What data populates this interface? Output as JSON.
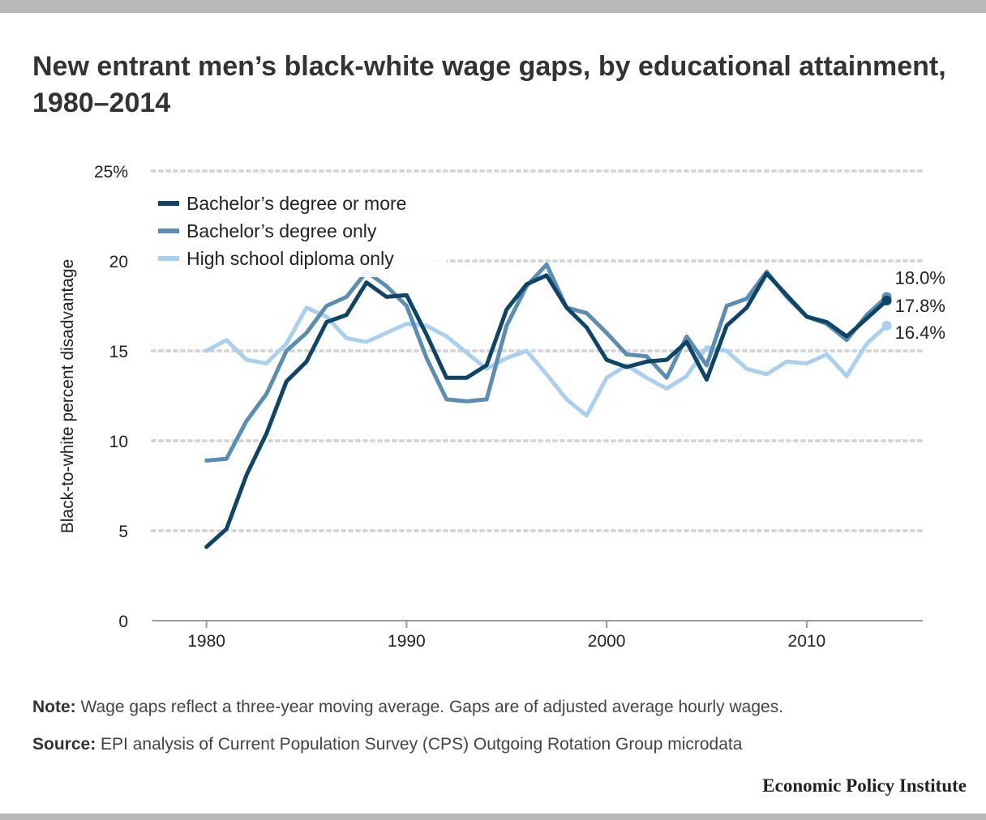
{
  "title": "New entrant men’s black-white wage gaps, by educational attainment, 1980–2014",
  "note": {
    "label": "Note:",
    "text": "Wage gaps reflect a three-year moving average. Gaps are of adjusted average hourly wages."
  },
  "source": {
    "label": "Source:",
    "text": "EPI analysis of Current Population Survey (CPS) Outgoing Rotation Group microdata"
  },
  "brand": "Economic Policy Institute",
  "chart_data": {
    "type": "line",
    "title": "New entrant men’s black-white wage gaps, by educational attainment, 1980–2014",
    "xlabel": "",
    "ylabel": "Black-to-white percent disadvantage",
    "xlim": [
      1977.3,
      2015.8
    ],
    "ylim": [
      0,
      25
    ],
    "x_ticks": [
      1980,
      1990,
      2000,
      2010
    ],
    "x_tick_labels": [
      "1980",
      "1990",
      "2000",
      "2010"
    ],
    "y_ticks": [
      0,
      5,
      10,
      15,
      20,
      25
    ],
    "y_tick_labels": [
      "0",
      "5",
      "10",
      "15",
      "20",
      "25%"
    ],
    "grid": "horizontal dotted",
    "legend_position": "top-left",
    "x": [
      1980,
      1981,
      1982,
      1983,
      1984,
      1985,
      1986,
      1987,
      1988,
      1989,
      1990,
      1991,
      1992,
      1993,
      1994,
      1995,
      1996,
      1997,
      1998,
      1999,
      2000,
      2001,
      2002,
      2003,
      2004,
      2005,
      2006,
      2007,
      2008,
      2009,
      2010,
      2011,
      2012,
      2013,
      2014
    ],
    "series": [
      {
        "name": "Bachelor’s degree or more",
        "color": "#0e4466",
        "values": [
          4.1,
          5.1,
          8.1,
          10.4,
          13.3,
          14.4,
          16.6,
          17.0,
          18.8,
          18.0,
          18.1,
          15.9,
          13.5,
          13.5,
          14.2,
          17.3,
          18.7,
          19.2,
          17.4,
          16.3,
          14.5,
          14.1,
          14.4,
          14.5,
          15.5,
          13.4,
          16.4,
          17.4,
          19.3,
          18.1,
          16.9,
          16.6,
          15.8,
          16.8,
          17.8
        ],
        "end_label": "17.8%"
      },
      {
        "name": "Bachelor’s degree only",
        "color": "#5b8db3",
        "values": [
          8.9,
          9.0,
          11.1,
          12.6,
          15.0,
          16.0,
          17.5,
          18.0,
          19.4,
          18.6,
          17.5,
          14.6,
          12.3,
          12.2,
          12.3,
          16.4,
          18.6,
          19.8,
          17.4,
          17.1,
          16.0,
          14.8,
          14.7,
          13.5,
          15.8,
          14.2,
          17.5,
          17.9,
          19.4,
          18.0,
          16.9,
          16.5,
          15.6,
          17.0,
          18.0
        ],
        "end_label": "18.0%"
      },
      {
        "name": "High school diploma only",
        "color": "#a9d0ef",
        "values": [
          15.0,
          15.6,
          14.5,
          14.3,
          15.4,
          17.4,
          16.9,
          15.7,
          15.5,
          16.0,
          16.5,
          16.4,
          15.8,
          14.9,
          14.0,
          14.6,
          15.0,
          13.7,
          12.3,
          11.4,
          13.5,
          14.2,
          13.5,
          12.9,
          13.6,
          15.2,
          15.0,
          14.0,
          13.7,
          14.4,
          14.3,
          14.8,
          13.6,
          15.4,
          16.4
        ],
        "end_label": "16.4%"
      }
    ],
    "gridline_color": "#d6d6d6"
  }
}
